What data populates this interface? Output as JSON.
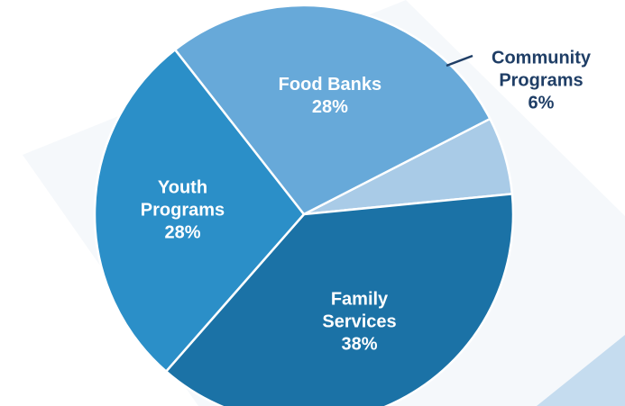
{
  "chart_data": {
    "type": "pie",
    "start_angle_deg": 62.8,
    "slices": [
      {
        "name": "Community Programs",
        "lines": [
          "Community",
          "Programs"
        ],
        "percent_label": "6%",
        "value": 6,
        "color": "#a9cbe7",
        "label_position": "outside"
      },
      {
        "name": "Family Services",
        "lines": [
          "Family",
          "Services"
        ],
        "percent_label": "38%",
        "value": 38,
        "color": "#1b72a6",
        "label_position": "inside"
      },
      {
        "name": "Youth Programs",
        "lines": [
          "Youth",
          "Programs"
        ],
        "percent_label": "28%",
        "value": 28,
        "color": "#2b8fc8",
        "label_position": "inside"
      },
      {
        "name": "Food Banks",
        "lines": [
          "Food Banks"
        ],
        "percent_label": "28%",
        "value": 28,
        "color": "#67a9d9",
        "label_position": "inside"
      }
    ]
  }
}
